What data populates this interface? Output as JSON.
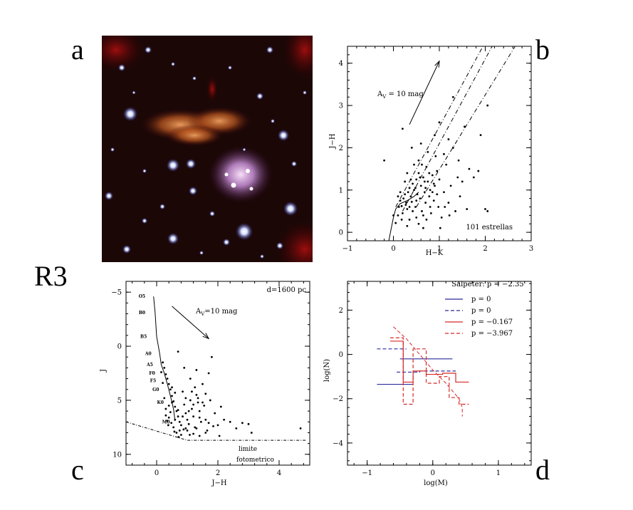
{
  "panel_labels": {
    "a": "a",
    "b": "b",
    "c": "c",
    "d": "d",
    "region": "R3"
  },
  "colors": {
    "line": "#000000",
    "p_blue": "#2b2b9a",
    "p_red": "#d82828"
  },
  "chart_data": [
    {
      "panel": "b",
      "type": "scatter",
      "xlabel": "H−K",
      "ylabel": "J−H",
      "xlim": [
        -1,
        3
      ],
      "ylim": [
        -0.2,
        4.4
      ],
      "xticks": [
        -1,
        0,
        1,
        2,
        3
      ],
      "yticks": [
        0,
        1,
        2,
        3,
        4
      ],
      "annotations": [
        {
          "text": "A",
          "sub": "V",
          "rest": " = 10 mag"
        },
        {
          "text": "101 estrellas"
        }
      ],
      "reddening_arrow": {
        "from": [
          0.35,
          2.55
        ],
        "to": [
          1.0,
          4.05
        ]
      },
      "main_sequence": [
        [
          -0.1,
          -0.2
        ],
        [
          0.0,
          0.35
        ],
        [
          0.05,
          0.55
        ],
        [
          0.15,
          0.68
        ],
        [
          0.3,
          0.75
        ],
        [
          0.45,
          0.85
        ],
        [
          0.55,
          0.95
        ]
      ],
      "reddening_lines": [
        {
          "from": [
            0.05,
            0.6
          ],
          "to": [
            1.95,
            4.4
          ]
        },
        {
          "from": [
            0.2,
            0.5
          ],
          "to": [
            2.15,
            4.4
          ]
        },
        {
          "from": [
            0.5,
            0.6
          ],
          "to": [
            2.65,
            4.4
          ]
        }
      ],
      "points": [
        [
          0.05,
          0.22
        ],
        [
          0.1,
          0.4
        ],
        [
          0.12,
          0.6
        ],
        [
          0.15,
          0.75
        ],
        [
          0.18,
          0.62
        ],
        [
          0.2,
          0.45
        ],
        [
          0.22,
          0.8
        ],
        [
          0.25,
          0.9
        ],
        [
          0.28,
          0.7
        ],
        [
          0.3,
          0.55
        ],
        [
          0.32,
          0.95
        ],
        [
          0.35,
          1.05
        ],
        [
          0.38,
          0.85
        ],
        [
          0.4,
          0.72
        ],
        [
          0.42,
          1.15
        ],
        [
          0.45,
          1.0
        ],
        [
          0.48,
          0.6
        ],
        [
          0.5,
          1.25
        ],
        [
          0.52,
          0.9
        ],
        [
          0.55,
          1.4
        ],
        [
          0.58,
          0.8
        ],
        [
          0.6,
          1.1
        ],
        [
          0.62,
          0.5
        ],
        [
          0.65,
          1.3
        ],
        [
          0.68,
          0.95
        ],
        [
          0.7,
          0.7
        ],
        [
          0.72,
          1.55
        ],
        [
          0.75,
          1.2
        ],
        [
          0.78,
          0.85
        ],
        [
          0.8,
          1.0
        ],
        [
          0.82,
          0.45
        ],
        [
          0.85,
          1.35
        ],
        [
          0.88,
          0.75
        ],
        [
          0.9,
          1.1
        ],
        [
          0.92,
          1.8
        ],
        [
          0.95,
          0.9
        ],
        [
          0.98,
          0.6
        ],
        [
          1.0,
          1.25
        ],
        [
          1.05,
          0.35
        ],
        [
          1.1,
          0.95
        ],
        [
          1.15,
          1.6
        ],
        [
          1.2,
          0.7
        ],
        [
          1.25,
          1.1
        ],
        [
          1.3,
          2.0
        ],
        [
          1.35,
          0.5
        ],
        [
          1.4,
          1.3
        ],
        [
          1.45,
          0.85
        ],
        [
          1.5,
          1.2
        ],
        [
          1.55,
          2.5
        ],
        [
          1.6,
          0.55
        ],
        [
          1.65,
          1.5
        ],
        [
          1.75,
          1.3
        ],
        [
          1.9,
          2.3
        ],
        [
          2.05,
          3.0
        ],
        [
          1.85,
          1.45
        ],
        [
          2.0,
          0.55
        ],
        [
          0.2,
          2.45
        ],
        [
          0.4,
          2.0
        ],
        [
          0.6,
          2.1
        ],
        [
          0.75,
          1.9
        ],
        [
          0.3,
          1.4
        ],
        [
          0.45,
          1.6
        ],
        [
          0.55,
          1.7
        ],
        [
          0.65,
          0.4
        ],
        [
          0.35,
          0.3
        ],
        [
          0.15,
          0.95
        ],
        [
          0.25,
          1.2
        ],
        [
          0.5,
          0.35
        ],
        [
          0.8,
          0.6
        ],
        [
          0.9,
          2.3
        ],
        [
          1.0,
          2.6
        ],
        [
          1.2,
          2.2
        ],
        [
          1.3,
          3.2
        ],
        [
          -0.2,
          1.7
        ],
        [
          0.0,
          0.4
        ],
        [
          0.1,
          0.85
        ],
        [
          0.35,
          0.6
        ],
        [
          0.5,
          0.75
        ],
        [
          0.7,
          1.05
        ],
        [
          0.85,
          0.95
        ],
        [
          0.95,
          1.45
        ],
        [
          1.1,
          1.85
        ],
        [
          0.58,
          1.3
        ],
        [
          0.42,
          0.5
        ],
        [
          0.27,
          0.65
        ],
        [
          0.62,
          1.6
        ],
        [
          0.72,
          0.3
        ],
        [
          1.22,
          0.4
        ],
        [
          0.38,
          1.25
        ],
        [
          0.48,
          1.05
        ],
        [
          0.68,
          1.2
        ],
        [
          0.78,
          1.4
        ],
        [
          0.88,
          1.15
        ],
        [
          1.12,
          0.6
        ],
        [
          1.42,
          1.7
        ],
        [
          0.55,
          0.2
        ],
        [
          0.3,
          0.15
        ],
        [
          0.18,
          0.3
        ],
        [
          1.02,
          0.1
        ],
        [
          0.65,
          0.1
        ],
        [
          2.05,
          0.5
        ]
      ]
    },
    {
      "panel": "c",
      "type": "scatter",
      "xlabel": "J−H",
      "ylabel": "J",
      "xlim": [
        -1,
        5
      ],
      "ylim": [
        11,
        -6
      ],
      "xticks": [
        0,
        2,
        4
      ],
      "yticks": [
        -5,
        0,
        5,
        10
      ],
      "annotations": [
        {
          "text": "d=1600 pc"
        },
        {
          "text": "A",
          "sub": "V",
          "rest": "=10 mag"
        },
        {
          "text": "limite"
        },
        {
          "text": "fotometrico"
        }
      ],
      "reddening_arrow": {
        "from": [
          0.5,
          -3.7
        ],
        "to": [
          1.7,
          -0.7
        ]
      },
      "spectral_labels": [
        {
          "label": "O5",
          "x": -0.3,
          "y": -4.6
        },
        {
          "label": "B0",
          "x": -0.3,
          "y": -3.1
        },
        {
          "label": "B5",
          "x": -0.25,
          "y": -0.9
        },
        {
          "label": "A0",
          "x": -0.1,
          "y": 0.7
        },
        {
          "label": "A5",
          "x": -0.05,
          "y": 1.7
        },
        {
          "label": "F0",
          "x": 0.02,
          "y": 2.5
        },
        {
          "label": "F5",
          "x": 0.05,
          "y": 3.2
        },
        {
          "label": "G0",
          "x": 0.15,
          "y": 4.0
        },
        {
          "label": "K0",
          "x": 0.3,
          "y": 5.2
        },
        {
          "label": "M0",
          "x": 0.5,
          "y": 7.0
        }
      ],
      "main_sequence": [
        [
          -0.1,
          -4.6
        ],
        [
          -0.05,
          -3.1
        ],
        [
          0.0,
          -0.9
        ],
        [
          0.1,
          0.7
        ],
        [
          0.15,
          1.7
        ],
        [
          0.25,
          2.5
        ],
        [
          0.35,
          3.5
        ],
        [
          0.45,
          4.6
        ],
        [
          0.55,
          5.8
        ],
        [
          0.6,
          6.9
        ]
      ],
      "limit_line": [
        [
          -1,
          7.0
        ],
        [
          1.0,
          8.7
        ],
        [
          4.9,
          8.7
        ]
      ],
      "points": [
        [
          0.2,
          1.5
        ],
        [
          0.25,
          2.0
        ],
        [
          0.3,
          2.6
        ],
        [
          0.35,
          3.0
        ],
        [
          0.4,
          3.5
        ],
        [
          0.45,
          4.0
        ],
        [
          0.5,
          4.6
        ],
        [
          0.55,
          5.1
        ],
        [
          0.6,
          5.6
        ],
        [
          0.65,
          6.0
        ],
        [
          0.7,
          6.5
        ],
        [
          0.75,
          7.0
        ],
        [
          0.8,
          7.3
        ],
        [
          0.85,
          4.2
        ],
        [
          0.9,
          5.4
        ],
        [
          0.95,
          6.2
        ],
        [
          1.0,
          6.8
        ],
        [
          1.05,
          7.2
        ],
        [
          1.1,
          5.0
        ],
        [
          1.15,
          5.8
        ],
        [
          1.2,
          6.5
        ],
        [
          1.25,
          7.5
        ],
        [
          1.3,
          4.5
        ],
        [
          1.35,
          5.2
        ],
        [
          1.4,
          6.0
        ],
        [
          1.45,
          7.0
        ],
        [
          1.5,
          3.5
        ],
        [
          1.55,
          5.5
        ],
        [
          1.6,
          6.8
        ],
        [
          1.65,
          7.8
        ],
        [
          1.7,
          2.5
        ],
        [
          1.75,
          5.0
        ],
        [
          1.8,
          1.0
        ],
        [
          1.9,
          6.2
        ],
        [
          2.0,
          7.3
        ],
        [
          2.1,
          5.6
        ],
        [
          2.2,
          6.8
        ],
        [
          2.4,
          7.0
        ],
        [
          2.6,
          7.6
        ],
        [
          2.8,
          7.1
        ],
        [
          3.0,
          7.2
        ],
        [
          3.1,
          8.0
        ],
        [
          0.7,
          0.5
        ],
        [
          0.9,
          2.0
        ],
        [
          1.1,
          3.0
        ],
        [
          1.3,
          2.2
        ],
        [
          0.5,
          3.8
        ],
        [
          0.6,
          4.3
        ],
        [
          0.4,
          5.5
        ],
        [
          0.3,
          6.4
        ],
        [
          0.35,
          6.9
        ],
        [
          0.55,
          7.5
        ],
        [
          0.65,
          8.0
        ],
        [
          0.8,
          8.2
        ],
        [
          1.0,
          7.8
        ],
        [
          1.2,
          8.1
        ],
        [
          1.4,
          8.3
        ],
        [
          1.6,
          8.0
        ],
        [
          1.85,
          7.4
        ],
        [
          2.05,
          8.3
        ],
        [
          0.45,
          6.1
        ],
        [
          0.5,
          5.2
        ],
        [
          0.7,
          5.9
        ],
        [
          0.85,
          6.5
        ],
        [
          0.95,
          4.8
        ],
        [
          1.15,
          4.2
        ],
        [
          1.25,
          3.8
        ],
        [
          1.35,
          4.8
        ],
        [
          1.5,
          5.2
        ],
        [
          1.6,
          4.4
        ],
        [
          0.25,
          4.8
        ],
        [
          0.3,
          5.8
        ],
        [
          0.4,
          6.6
        ],
        [
          0.6,
          6.8
        ],
        [
          0.75,
          7.8
        ],
        [
          0.95,
          7.6
        ],
        [
          1.05,
          6.0
        ],
        [
          1.2,
          5.4
        ],
        [
          1.4,
          6.6
        ],
        [
          1.7,
          7.1
        ],
        [
          4.7,
          7.6
        ],
        [
          0.15,
          2.4
        ],
        [
          0.2,
          3.4
        ],
        [
          0.38,
          7.3
        ],
        [
          0.48,
          7.1
        ],
        [
          0.58,
          7.9
        ],
        [
          0.72,
          8.4
        ],
        [
          0.88,
          7.7
        ],
        [
          1.08,
          8.2
        ],
        [
          1.3,
          7.6
        ]
      ]
    },
    {
      "panel": "d",
      "type": "line",
      "xlabel": "log(M)",
      "ylabel": "log(N)",
      "xlim": [
        -1.3,
        1.5
      ],
      "ylim": [
        -5,
        3.3
      ],
      "xticks": [
        -1,
        0,
        1
      ],
      "yticks": [
        -4,
        -2,
        0,
        2
      ],
      "annotations": [
        {
          "text": "Salpeter: p = −2.35"
        }
      ],
      "series": [
        {
          "name": "p = 0",
          "color": "#2b2b9a",
          "dash": false,
          "steps": [
            [
              -0.85,
              -0.3,
              -1.35
            ],
            [
              -0.5,
              0.1,
              -0.2
            ],
            [
              -0.1,
              0.3,
              -0.2
            ]
          ]
        },
        {
          "name": "p = 0",
          "color": "#2b2b9a",
          "dash": true,
          "steps": [
            [
              -0.85,
              -0.4,
              0.25
            ],
            [
              -0.55,
              -0.2,
              -0.8
            ],
            [
              -0.2,
              0.35,
              -0.75
            ]
          ]
        },
        {
          "name": "p = −0.167",
          "color": "#d82828",
          "dash": false,
          "steps": [
            [
              -0.65,
              -0.45,
              0.6
            ],
            [
              -0.45,
              -0.3,
              -1.25
            ],
            [
              -0.3,
              -0.1,
              -0.75
            ],
            [
              -0.1,
              0.15,
              -0.9
            ],
            [
              0.15,
              0.35,
              -0.85
            ],
            [
              0.35,
              0.55,
              -1.25
            ]
          ]
        },
        {
          "name": "p = −3.967",
          "color": "#d82828",
          "dash": true,
          "steps": [
            [
              -0.65,
              -0.45,
              0.75
            ],
            [
              -0.45,
              -0.3,
              -2.25
            ],
            [
              -0.3,
              -0.1,
              0.25
            ],
            [
              -0.1,
              0.1,
              -1.3
            ],
            [
              0.1,
              0.25,
              -1.0
            ],
            [
              0.25,
              0.4,
              -1.95
            ],
            [
              0.4,
              0.55,
              -2.25
            ]
          ],
          "curve": [
            [
              -0.6,
              1.25
            ],
            [
              -0.4,
              0.7
            ],
            [
              -0.2,
              0.0
            ],
            [
              0.0,
              -0.7
            ],
            [
              0.2,
              -1.3
            ],
            [
              0.4,
              -2.0
            ],
            [
              0.45,
              -2.4
            ],
            [
              0.45,
              -2.8
            ]
          ]
        }
      ]
    }
  ]
}
